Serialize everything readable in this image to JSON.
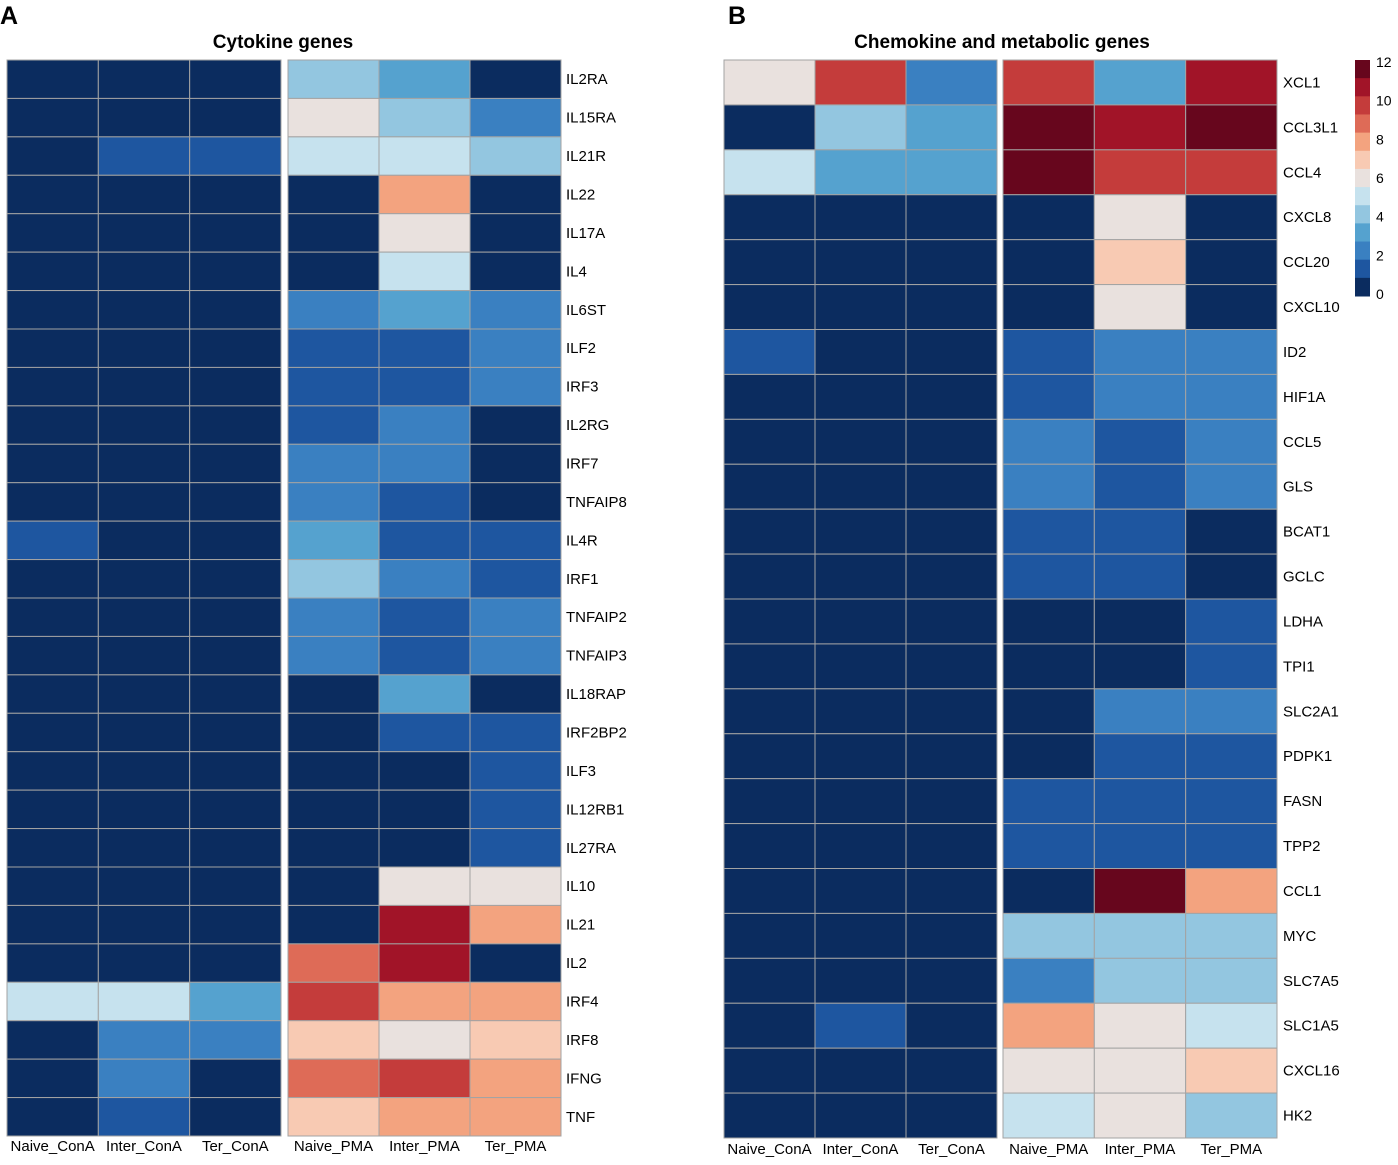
{
  "colorscale": [
    {
      "value": 0,
      "color": "#0b2c5f"
    },
    {
      "value": 1,
      "color": "#1e56a0"
    },
    {
      "value": 2,
      "color": "#3a80c1"
    },
    {
      "value": 3,
      "color": "#55a2cf"
    },
    {
      "value": 4,
      "color": "#93c6e0"
    },
    {
      "value": 5,
      "color": "#c6e2ee"
    },
    {
      "value": 6,
      "color": "#e9e1de"
    },
    {
      "value": 7,
      "color": "#f8cab3"
    },
    {
      "value": 8,
      "color": "#f3a37f"
    },
    {
      "value": 9,
      "color": "#de6b57"
    },
    {
      "value": 10,
      "color": "#c43c3b"
    },
    {
      "value": 11,
      "color": "#a11428"
    },
    {
      "value": 12,
      "color": "#67061d"
    }
  ],
  "legend": {
    "ticks": [
      "12",
      "10",
      "8",
      "6",
      "4",
      "2",
      "0"
    ],
    "min": 0,
    "max": 12
  },
  "chart_data": [
    {
      "type": "heatmap",
      "panel_letter": "A",
      "title": "Cytokine genes",
      "columns": [
        "Naive_ConA",
        "Inter_ConA",
        "Ter_ConA",
        "Naive_PMA",
        "Inter_PMA",
        "Ter_PMA"
      ],
      "column_split_after": 3,
      "rows": [
        "IL2RA",
        "IL15RA",
        "IL21R",
        "IL22",
        "IL17A",
        "IL4",
        "IL6ST",
        "ILF2",
        "IRF3",
        "IL2RG",
        "IRF7",
        "TNFAIP8",
        "IL4R",
        "IRF1",
        "TNFAIP2",
        "TNFAIP3",
        "IL18RAP",
        "IRF2BP2",
        "ILF3",
        "IL12RB1",
        "IL27RA",
        "IL10",
        "IL21",
        "IL2",
        "IRF4",
        "IRF8",
        "IFNG",
        "TNF"
      ],
      "values": [
        [
          0,
          0,
          0,
          4,
          3,
          0
        ],
        [
          0,
          0,
          0,
          6,
          4,
          2
        ],
        [
          0,
          1,
          1,
          5,
          5,
          4
        ],
        [
          0,
          0,
          0,
          0,
          8,
          0
        ],
        [
          0,
          0,
          0,
          0,
          6,
          0
        ],
        [
          0,
          0,
          0,
          0,
          5,
          0
        ],
        [
          0,
          0,
          0,
          2,
          3,
          2
        ],
        [
          0,
          0,
          0,
          1,
          1,
          2
        ],
        [
          0,
          0,
          0,
          1,
          1,
          2
        ],
        [
          0,
          0,
          0,
          1,
          2,
          0
        ],
        [
          0,
          0,
          0,
          2,
          2,
          0
        ],
        [
          0,
          0,
          0,
          2,
          1,
          0
        ],
        [
          1,
          0,
          0,
          3,
          1,
          1
        ],
        [
          0,
          0,
          0,
          4,
          2,
          1
        ],
        [
          0,
          0,
          0,
          2,
          1,
          2
        ],
        [
          0,
          0,
          0,
          2,
          1,
          2
        ],
        [
          0,
          0,
          0,
          0,
          3,
          0
        ],
        [
          0,
          0,
          0,
          0,
          1,
          1
        ],
        [
          0,
          0,
          0,
          0,
          0,
          1
        ],
        [
          0,
          0,
          0,
          0,
          0,
          1
        ],
        [
          0,
          0,
          0,
          0,
          0,
          1
        ],
        [
          0,
          0,
          0,
          0,
          6,
          6
        ],
        [
          0,
          0,
          0,
          0,
          11,
          8
        ],
        [
          0,
          0,
          0,
          9,
          11,
          0
        ],
        [
          5,
          5,
          3,
          10,
          8,
          8
        ],
        [
          0,
          2,
          2,
          7,
          6,
          7
        ],
        [
          0,
          2,
          0,
          9,
          10,
          8
        ],
        [
          0,
          1,
          0,
          7,
          8,
          8
        ]
      ]
    },
    {
      "type": "heatmap",
      "panel_letter": "B",
      "title": "Chemokine and metabolic genes",
      "columns": [
        "Naive_ConA",
        "Inter_ConA",
        "Ter_ConA",
        "Naive_PMA",
        "Inter_PMA",
        "Ter_PMA"
      ],
      "column_split_after": 3,
      "rows": [
        "XCL1",
        "CCL3L1",
        "CCL4",
        "CXCL8",
        "CCL20",
        "CXCL10",
        "ID2",
        "HIF1A",
        "CCL5",
        "GLS",
        "BCAT1",
        "GCLC",
        "LDHA",
        "TPI1",
        "SLC2A1",
        "PDPK1",
        "FASN",
        "TPP2",
        "CCL1",
        "MYC",
        "SLC7A5",
        "SLC1A5",
        "CXCL16",
        "HK2"
      ],
      "values": [
        [
          6,
          10,
          2,
          10,
          3,
          11
        ],
        [
          0,
          4,
          3,
          12,
          11,
          12
        ],
        [
          5,
          3,
          3,
          12,
          10,
          10
        ],
        [
          0,
          0,
          0,
          0,
          6,
          0
        ],
        [
          0,
          0,
          0,
          0,
          7,
          0
        ],
        [
          0,
          0,
          0,
          0,
          6,
          0
        ],
        [
          1,
          0,
          0,
          1,
          2,
          2
        ],
        [
          0,
          0,
          0,
          1,
          2,
          2
        ],
        [
          0,
          0,
          0,
          2,
          1,
          2
        ],
        [
          0,
          0,
          0,
          2,
          1,
          2
        ],
        [
          0,
          0,
          0,
          1,
          1,
          0
        ],
        [
          0,
          0,
          0,
          1,
          1,
          0
        ],
        [
          0,
          0,
          0,
          0,
          0,
          1
        ],
        [
          0,
          0,
          0,
          0,
          0,
          1
        ],
        [
          0,
          0,
          0,
          0,
          2,
          2
        ],
        [
          0,
          0,
          0,
          0,
          1,
          1
        ],
        [
          0,
          0,
          0,
          1,
          1,
          1
        ],
        [
          0,
          0,
          0,
          1,
          1,
          1
        ],
        [
          0,
          0,
          0,
          0,
          12,
          8
        ],
        [
          0,
          0,
          0,
          4,
          4,
          4
        ],
        [
          0,
          0,
          0,
          2,
          4,
          4
        ],
        [
          0,
          1,
          0,
          8,
          6,
          5
        ],
        [
          0,
          0,
          0,
          6,
          6,
          7
        ],
        [
          0,
          0,
          0,
          5,
          6,
          4
        ]
      ]
    }
  ]
}
